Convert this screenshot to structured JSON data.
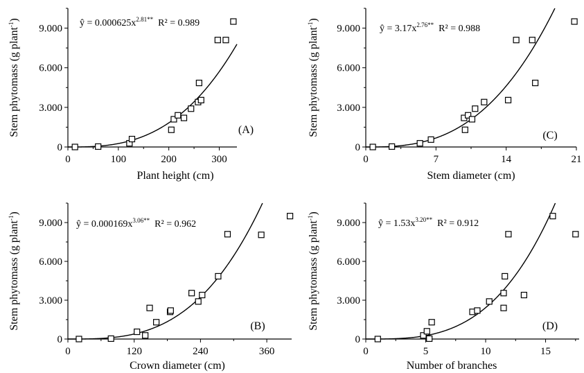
{
  "chart_data": [
    {
      "type": "scatter",
      "panel_label": "(A)",
      "xlabel": "Plant height (cm)",
      "ylabel": "Stem phytomass (g plant",
      "ylabel_sup": "-1",
      "ylabel_end": ")",
      "xlim": [
        0,
        335
      ],
      "ylim": [
        0,
        10500
      ],
      "xticks": [
        0,
        100,
        200,
        300
      ],
      "xtick_labels": [
        "0",
        "100",
        "200",
        "300"
      ],
      "yticks": [
        0,
        3000,
        6000,
        9000
      ],
      "ytick_labels": [
        "0",
        "3.000",
        "6.000",
        "9.000"
      ],
      "equation": {
        "lhs": "ŷ = 0.000625x",
        "exponent": "2.81**",
        "r2": "R² = 0.989"
      },
      "fit": {
        "a": 0.000625,
        "b": 2.81
      },
      "points": [
        [
          14,
          0
        ],
        [
          60,
          30
        ],
        [
          122,
          280
        ],
        [
          127,
          600
        ],
        [
          205,
          1300
        ],
        [
          210,
          2100
        ],
        [
          218,
          2400
        ],
        [
          230,
          2200
        ],
        [
          244,
          2900
        ],
        [
          258,
          3400
        ],
        [
          260,
          4850
        ],
        [
          264,
          3550
        ],
        [
          297,
          8100
        ],
        [
          313,
          8100
        ],
        [
          328,
          9500
        ]
      ]
    },
    {
      "type": "scatter",
      "panel_label": "(C)",
      "xlabel": "Stem diameter (cm)",
      "ylabel": "Stem phytomass (g plant",
      "ylabel_sup": "-1",
      "ylabel_end": ")",
      "xlim": [
        0,
        21
      ],
      "ylim": [
        0,
        10500
      ],
      "xticks": [
        0,
        7,
        14,
        21
      ],
      "xtick_labels": [
        "0",
        "7",
        "14",
        "21"
      ],
      "yticks": [
        0,
        3000,
        6000,
        9000
      ],
      "ytick_labels": [
        "0",
        "3.000",
        "6.000",
        "9.000"
      ],
      "equation": {
        "lhs": "ŷ = 3.17x",
        "exponent": "2.76**",
        "r2": "R² = 0.988"
      },
      "fit": {
        "a": 3.17,
        "b": 2.76
      },
      "points": [
        [
          0.7,
          0
        ],
        [
          2.6,
          30
        ],
        [
          5.4,
          280
        ],
        [
          6.5,
          560
        ],
        [
          9.8,
          2200
        ],
        [
          9.9,
          1300
        ],
        [
          10.2,
          2400
        ],
        [
          10.6,
          2100
        ],
        [
          10.9,
          2900
        ],
        [
          11.8,
          3400
        ],
        [
          14.2,
          3550
        ],
        [
          15.0,
          8100
        ],
        [
          16.6,
          8100
        ],
        [
          16.9,
          4850
        ],
        [
          20.8,
          9500
        ]
      ]
    },
    {
      "type": "scatter",
      "panel_label": "(B)",
      "xlabel": "Crown diameter (cm)",
      "ylabel": "Stem phytomass (g plant",
      "ylabel_sup": "-1",
      "ylabel_end": ")",
      "xlim": [
        0,
        405
      ],
      "ylim": [
        0,
        10500
      ],
      "xticks": [
        0,
        120,
        240,
        360
      ],
      "xtick_labels": [
        "0",
        "120",
        "240",
        "360"
      ],
      "yticks": [
        0,
        3000,
        6000,
        9000
      ],
      "ytick_labels": [
        "0",
        "3.000",
        "6.000",
        "9.000"
      ],
      "equation": {
        "lhs": "ŷ = 0.000169x",
        "exponent": "3.06**",
        "r2": "R² = 0.962"
      },
      "fit": {
        "a": 0.000169,
        "b": 3.06
      },
      "points": [
        [
          20,
          0
        ],
        [
          78,
          30
        ],
        [
          125,
          560
        ],
        [
          140,
          280
        ],
        [
          148,
          2400
        ],
        [
          160,
          1300
        ],
        [
          185,
          2100
        ],
        [
          186,
          2200
        ],
        [
          224,
          3550
        ],
        [
          236,
          2900
        ],
        [
          243,
          3400
        ],
        [
          272,
          4850
        ],
        [
          289,
          8100
        ],
        [
          350,
          8050
        ],
        [
          402,
          9500
        ]
      ]
    },
    {
      "type": "scatter",
      "panel_label": "(D)",
      "xlabel": "Number of branches",
      "ylabel": "Stem phytomass (g plant",
      "ylabel_sup": "-1",
      "ylabel_end": ")",
      "xlim": [
        0,
        17.8
      ],
      "ylim": [
        0,
        10500
      ],
      "xticks": [
        0,
        5,
        10,
        15
      ],
      "xtick_labels": [
        "0",
        "5",
        "10",
        "15"
      ],
      "yticks": [
        0,
        3000,
        6000,
        9000
      ],
      "ytick_labels": [
        "0",
        "3.000",
        "6.000",
        "9.000"
      ],
      "equation": {
        "lhs": "ŷ = 1.53x",
        "exponent": "3.20**",
        "r2": "R² = 0.912"
      },
      "fit": {
        "a": 1.53,
        "b": 3.2
      },
      "points": [
        [
          1.0,
          0
        ],
        [
          4.8,
          280
        ],
        [
          5.1,
          600
        ],
        [
          5.3,
          30
        ],
        [
          5.5,
          1300
        ],
        [
          8.9,
          2100
        ],
        [
          9.3,
          2200
        ],
        [
          10.3,
          2900
        ],
        [
          11.5,
          2400
        ],
        [
          11.5,
          3550
        ],
        [
          11.6,
          4850
        ],
        [
          11.9,
          8100
        ],
        [
          13.2,
          3400
        ],
        [
          15.6,
          9500
        ],
        [
          17.5,
          8100
        ]
      ]
    }
  ]
}
